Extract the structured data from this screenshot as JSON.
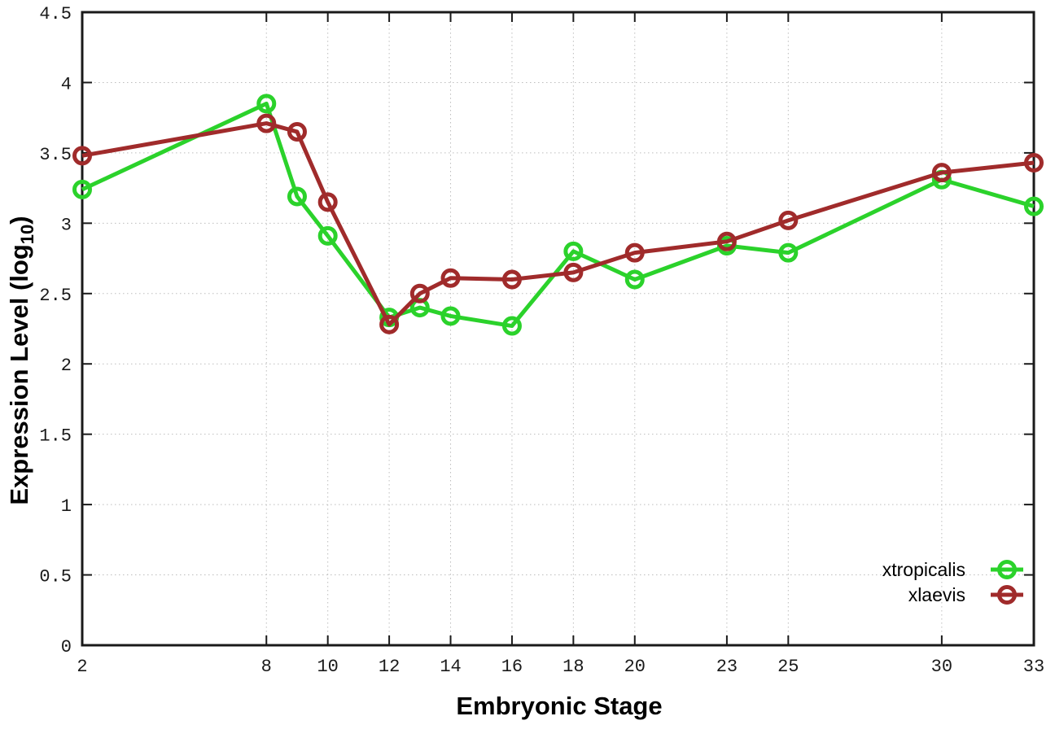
{
  "chart_data": {
    "type": "line",
    "title": "",
    "xlabel": "Embryonic Stage",
    "ylabel": {
      "prefix": "Expression Level (log",
      "sub": "10",
      "suffix": ")"
    },
    "xlim": [
      2,
      33
    ],
    "ylim": [
      0,
      4.5
    ],
    "xticks": [
      2,
      8,
      10,
      12,
      14,
      16,
      18,
      20,
      23,
      25,
      30,
      33
    ],
    "yticks": [
      0,
      0.5,
      1,
      1.5,
      2,
      2.5,
      3,
      3.5,
      4,
      4.5
    ],
    "grid": true,
    "legend_position": "inside-bottom-right",
    "x": [
      2,
      8,
      9,
      10,
      12,
      13,
      14,
      16,
      18,
      20,
      23,
      25,
      30,
      33
    ],
    "series": [
      {
        "name": "xtropicalis",
        "color": "#2bd22b",
        "values": [
          3.24,
          3.85,
          3.19,
          2.91,
          2.33,
          2.4,
          2.34,
          2.27,
          2.8,
          2.6,
          2.84,
          2.79,
          3.31,
          3.12
        ]
      },
      {
        "name": "xlaevis",
        "color": "#a02b2b",
        "values": [
          3.48,
          3.71,
          3.65,
          3.15,
          2.28,
          2.5,
          2.61,
          2.6,
          2.65,
          2.79,
          2.87,
          3.02,
          3.36,
          3.43
        ]
      }
    ],
    "colors": {
      "background": "#ffffff",
      "grid": "#bdbdbd",
      "border": "#1a1a1a",
      "tick": "#1a1a1a"
    }
  }
}
